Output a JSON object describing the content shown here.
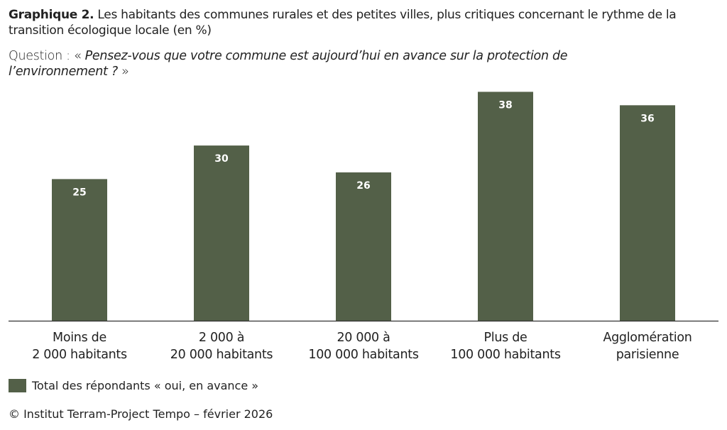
{
  "title_bold": "Graphique 2.",
  "title_rest": " Les habitants des communes rurales et des petites villes, plus critiques concernant le rythme de la transition écologique locale (en %)",
  "question_prefix": "Question : « ",
  "question_italic": "Pensez-vous que votre commune est aujourd’hui en avance sur la protection de l’environnement ?",
  "question_suffix": " »",
  "source": "© Institut Terram-Project Tempo – février 2026",
  "chart_data": {
    "type": "bar",
    "title": "Les habitants des communes rurales et des petites villes, plus critiques concernant le rythme de la transition écologique locale (en %)",
    "categories": [
      [
        "Moins de",
        "2 000 habitants"
      ],
      [
        "2 000 à",
        "20 000 habitants"
      ],
      [
        "20 000 à",
        "100 000 habitants"
      ],
      [
        "Plus de",
        "100 000 habitants"
      ],
      [
        "Agglomération",
        "parisienne"
      ]
    ],
    "series": [
      {
        "name": "Total des répondants « oui, en avance »",
        "values": [
          25,
          30,
          26,
          38,
          36
        ],
        "color": "#536048"
      }
    ],
    "xlabel": "",
    "ylabel": "",
    "legend": "bottom-left",
    "grid": false
  }
}
